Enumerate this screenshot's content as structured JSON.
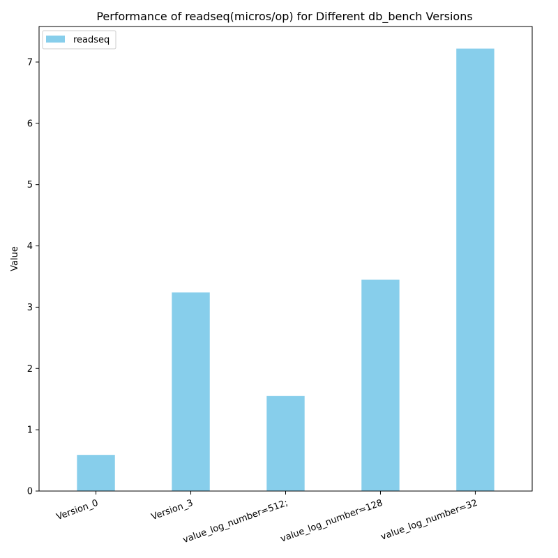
{
  "chart_data": {
    "type": "bar",
    "title": "Performance of readseq(micros/op) for Different db_bench Versions",
    "xlabel": "",
    "ylabel": "Value",
    "categories": [
      "Version_0",
      "Version_3",
      "value_log_number=512;",
      "value_log_number=128",
      "value_log_number=32"
    ],
    "series": [
      {
        "name": "readseq",
        "values": [
          0.59,
          3.24,
          1.55,
          3.45,
          7.22
        ],
        "color": "#87ceeb"
      }
    ],
    "ylim": [
      0,
      7.58
    ],
    "yticks": [
      0,
      1,
      2,
      3,
      4,
      5,
      6,
      7
    ],
    "grid": false,
    "legend_position": "top-left",
    "xtick_rotation": -20
  }
}
